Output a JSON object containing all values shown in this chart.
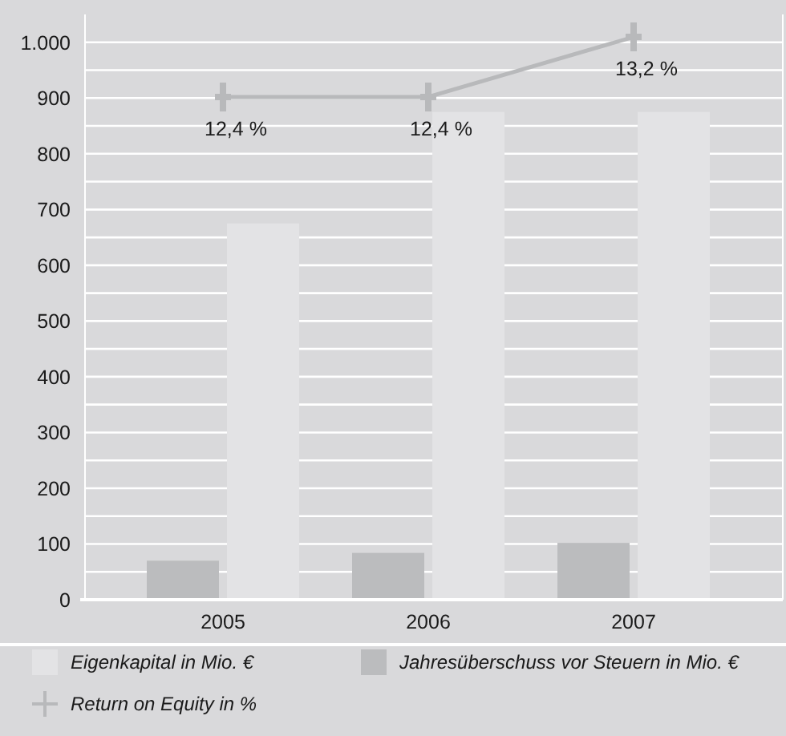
{
  "chart_data": {
    "type": "bar",
    "categories": [
      "2005",
      "2006",
      "2007"
    ],
    "series": [
      {
        "name": "Eigenkapital in Mio. €",
        "color": "#e3e3e5",
        "values": [
          675,
          875,
          875
        ]
      },
      {
        "name": "Jahresüberschuss vor Steuern in Mio. €",
        "color": "#bbbcbe",
        "values": [
          70,
          84,
          102
        ]
      },
      {
        "name": "Return on Equity in %",
        "type": "line",
        "axis": "y2",
        "color": "#b8b9bb",
        "values": [
          12.4,
          12.4,
          13.2
        ],
        "value_labels": [
          "12,4 %",
          "12,4 %",
          "13,2 %"
        ]
      }
    ],
    "ylim": [
      0,
      1050
    ],
    "yticks": [
      0,
      {
        "value": 50,
        "label": null
      },
      100,
      {
        "value": 150,
        "label": null
      },
      200,
      {
        "value": 250,
        "label": null
      },
      300,
      {
        "value": 350,
        "label": null
      },
      400,
      {
        "value": 450,
        "label": null
      },
      500,
      {
        "value": 550,
        "label": null
      },
      600,
      {
        "value": 650,
        "label": null
      },
      700,
      {
        "value": 750,
        "label": null
      },
      800,
      {
        "value": 850,
        "label": null
      },
      900,
      {
        "value": 950,
        "label": null
      },
      {
        "value": 1000,
        "label": "1.000"
      }
    ],
    "y2lim": [
      5.7,
      13.5
    ],
    "tick_labels": "xy",
    "grid": "y",
    "legend": "bottom",
    "marker": "cross"
  }
}
